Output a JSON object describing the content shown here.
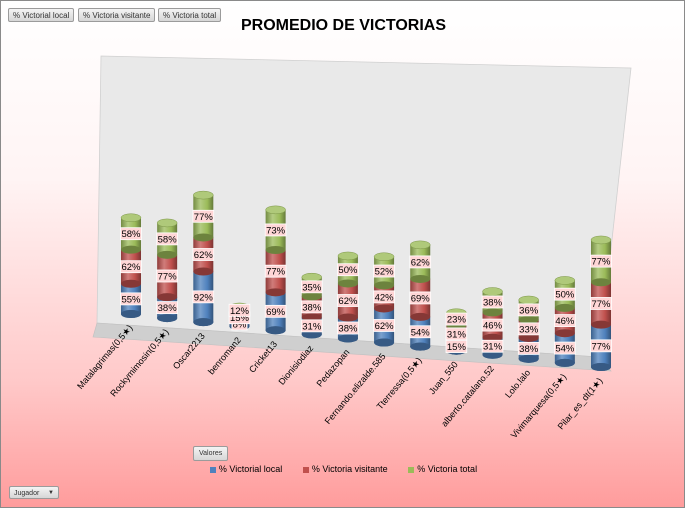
{
  "field_buttons": [
    "% Victorial local",
    "% Victoria visitante",
    "% Victoria total"
  ],
  "values_button": "Valores",
  "filter_button": "Jugador",
  "chart_data": {
    "type": "bar",
    "stacked": true,
    "style": "3d-cylinder",
    "title": "PROMEDIO DE VICTORIAS",
    "categories": [
      "Matalagrimas(0,5★)",
      "Rockymimosin(0,5★)",
      "Oscar2213",
      "benroman2",
      "Cricket13",
      "Dionisiodiaz",
      "Pedazopan",
      "Fernando.elizalde.585",
      "Tterressa(0,5★)",
      "Juan_550",
      "alberto.catalano.52",
      "Lolo.lalo",
      "Vivimarquesa(0,5★)",
      "Pilar_es_dt(1★)"
    ],
    "series": [
      {
        "name": "% Victorial local",
        "color": "#4f81bd",
        "values": [
          55,
          38,
          92,
          8,
          69,
          31,
          38,
          62,
          54,
          15,
          31,
          38,
          54,
          77
        ]
      },
      {
        "name": "% Victoria visitante",
        "color": "#c0504d",
        "values": [
          62,
          77,
          62,
          15,
          77,
          38,
          62,
          42,
          69,
          31,
          46,
          33,
          46,
          77
        ]
      },
      {
        "name": "% Victoria total",
        "color": "#9bbb59",
        "values": [
          58,
          58,
          77,
          12,
          73,
          35,
          50,
          52,
          62,
          23,
          38,
          36,
          50,
          77
        ]
      }
    ],
    "value_format": "percent",
    "legend_position": "bottom"
  }
}
